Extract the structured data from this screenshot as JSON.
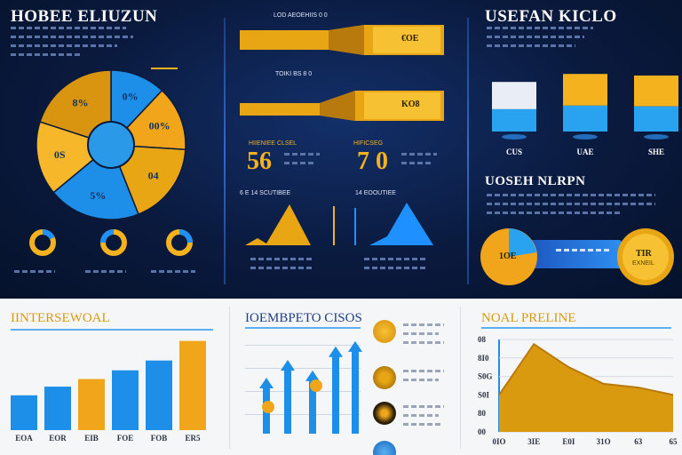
{
  "panels": {
    "top_left": {
      "title": "HOBEE ELIUZUN"
    },
    "top_mid": {
      "ribbon_label_1": "LOD AEOEHIIS 0 0",
      "ribbon_value_1": "€OE",
      "ribbon_label_2": "TOIKI BS 8 0",
      "ribbon_value_2": "KO8",
      "stat_1": "56",
      "stat_1_caption": "HIIENIEE CLSEL",
      "stat_2": "7 0",
      "stat_2_caption": "HIFICSEG",
      "mini_caption_1": "6 E 14 SCUTIBEE",
      "mini_caption_2": "14 EOOUTIEE"
    },
    "top_right": {
      "title": "USEFAN KICLO",
      "subtitle": "UOSEH NLRPN",
      "bar_labels": [
        "CUS",
        "UAE",
        "SHE"
      ],
      "pill_left": "1OE",
      "pill_right": "TIR",
      "pill_right_sub": "EXNEIL"
    },
    "bottom_left": {
      "title": "IINTERSEWOAL"
    },
    "bottom_mid": {
      "title": "IOEMBPETO CISOS"
    },
    "bottom_right": {
      "title": "NOAL PRELINE"
    }
  },
  "colors": {
    "gold": "#f3b21e",
    "blue": "#1e90ff",
    "navy": "#0b1a3a"
  },
  "chart_data": [
    {
      "type": "pie",
      "labels": [
        "0%",
        "00%",
        "04",
        "5%",
        "0S",
        "8%"
      ],
      "values": [
        12,
        14,
        18,
        20,
        16,
        20
      ]
    },
    {
      "type": "bar",
      "categories": [
        "CUS",
        "UAE",
        "SHE"
      ],
      "values": [
        62,
        72,
        70
      ]
    },
    {
      "type": "bar",
      "categories": [
        "EOA",
        "EOR",
        "EIB",
        "FOE",
        "FOB",
        "ER5"
      ],
      "values": [
        32,
        40,
        47,
        55,
        64,
        82
      ]
    },
    {
      "type": "bar",
      "categories": [
        "",
        "",
        "",
        "",
        ""
      ],
      "values": [
        45,
        62,
        52,
        75,
        80
      ]
    },
    {
      "type": "area",
      "categories": [
        "0IO",
        "3IE",
        "E0I",
        "31O",
        "63",
        "65"
      ],
      "y_ticks": [
        "08",
        "8I0",
        "S0G",
        "S0I",
        "80",
        "00"
      ],
      "values": [
        40,
        95,
        70,
        52,
        48,
        40
      ]
    }
  ]
}
